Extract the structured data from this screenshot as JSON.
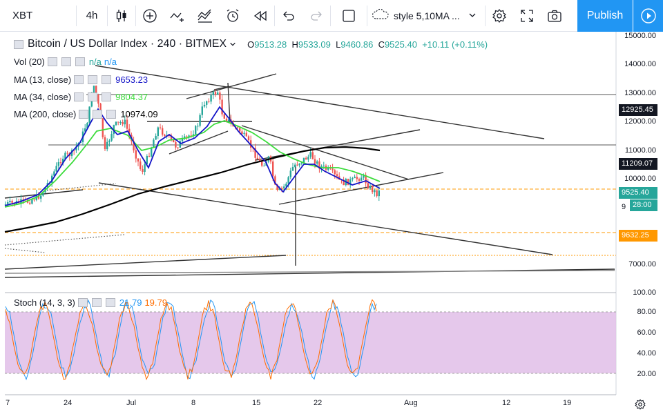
{
  "toolbar": {
    "symbol": "XBT",
    "interval": "4h",
    "style_label": "style 5,10MA ...",
    "publish_label": "Publish"
  },
  "header": {
    "title": "Bitcoin / US Dollar Index · 240 · BITMEX",
    "open_key": "O",
    "open_value": "9513.28",
    "high_key": "H",
    "high_value": "9533.09",
    "low_key": "L",
    "low_value": "9460.86",
    "close_key": "C",
    "close_value": "9525.40",
    "change": "+10.11 (+0.11%)"
  },
  "indicators": [
    {
      "name": "Vol (20)",
      "values": [
        "n/a",
        "n/a"
      ],
      "colors": [
        "#26a69a",
        "#2196f3"
      ]
    },
    {
      "name": "MA (13, close)",
      "values": [
        "9653.23"
      ],
      "colors": [
        "#1515c8"
      ]
    },
    {
      "name": "MA (34, close)",
      "values": [
        "9804.37"
      ],
      "colors": [
        "#3ddc3d"
      ]
    },
    {
      "name": "MA (200, close)",
      "values": [
        "10974.09"
      ],
      "colors": [
        "#000000"
      ]
    }
  ],
  "stoch": {
    "name": "Stoch (14, 3, 3)",
    "k_value": "21.79",
    "d_value": "19.79",
    "k_color": "#2196f3",
    "d_color": "#ff6d00"
  },
  "price_axis": [
    "15000.00",
    "14000.00",
    "13000.00",
    "12000.00",
    "11000.00",
    "10000.00",
    "9",
    "7000.00"
  ],
  "price_tags": [
    {
      "label": "12925.45",
      "color": "#131722"
    },
    {
      "label": "11209.07",
      "color": "#131722"
    },
    {
      "label": "9525.40",
      "color": "#26a69a"
    },
    {
      "label": "28:00",
      "color": "#26a69a"
    },
    {
      "label": "9632.25",
      "color": "#ff9800"
    }
  ],
  "stoch_axis": [
    "100.00",
    "80.00",
    "60.00",
    "40.00",
    "20.00"
  ],
  "time_axis": [
    "7",
    "24",
    "Jul",
    "8",
    "15",
    "22",
    "Aug",
    "12",
    "19"
  ],
  "colors": {
    "accent": "#2196f3",
    "up": "#26a69a",
    "down": "#ef5350",
    "band": "#e1bee7"
  }
}
